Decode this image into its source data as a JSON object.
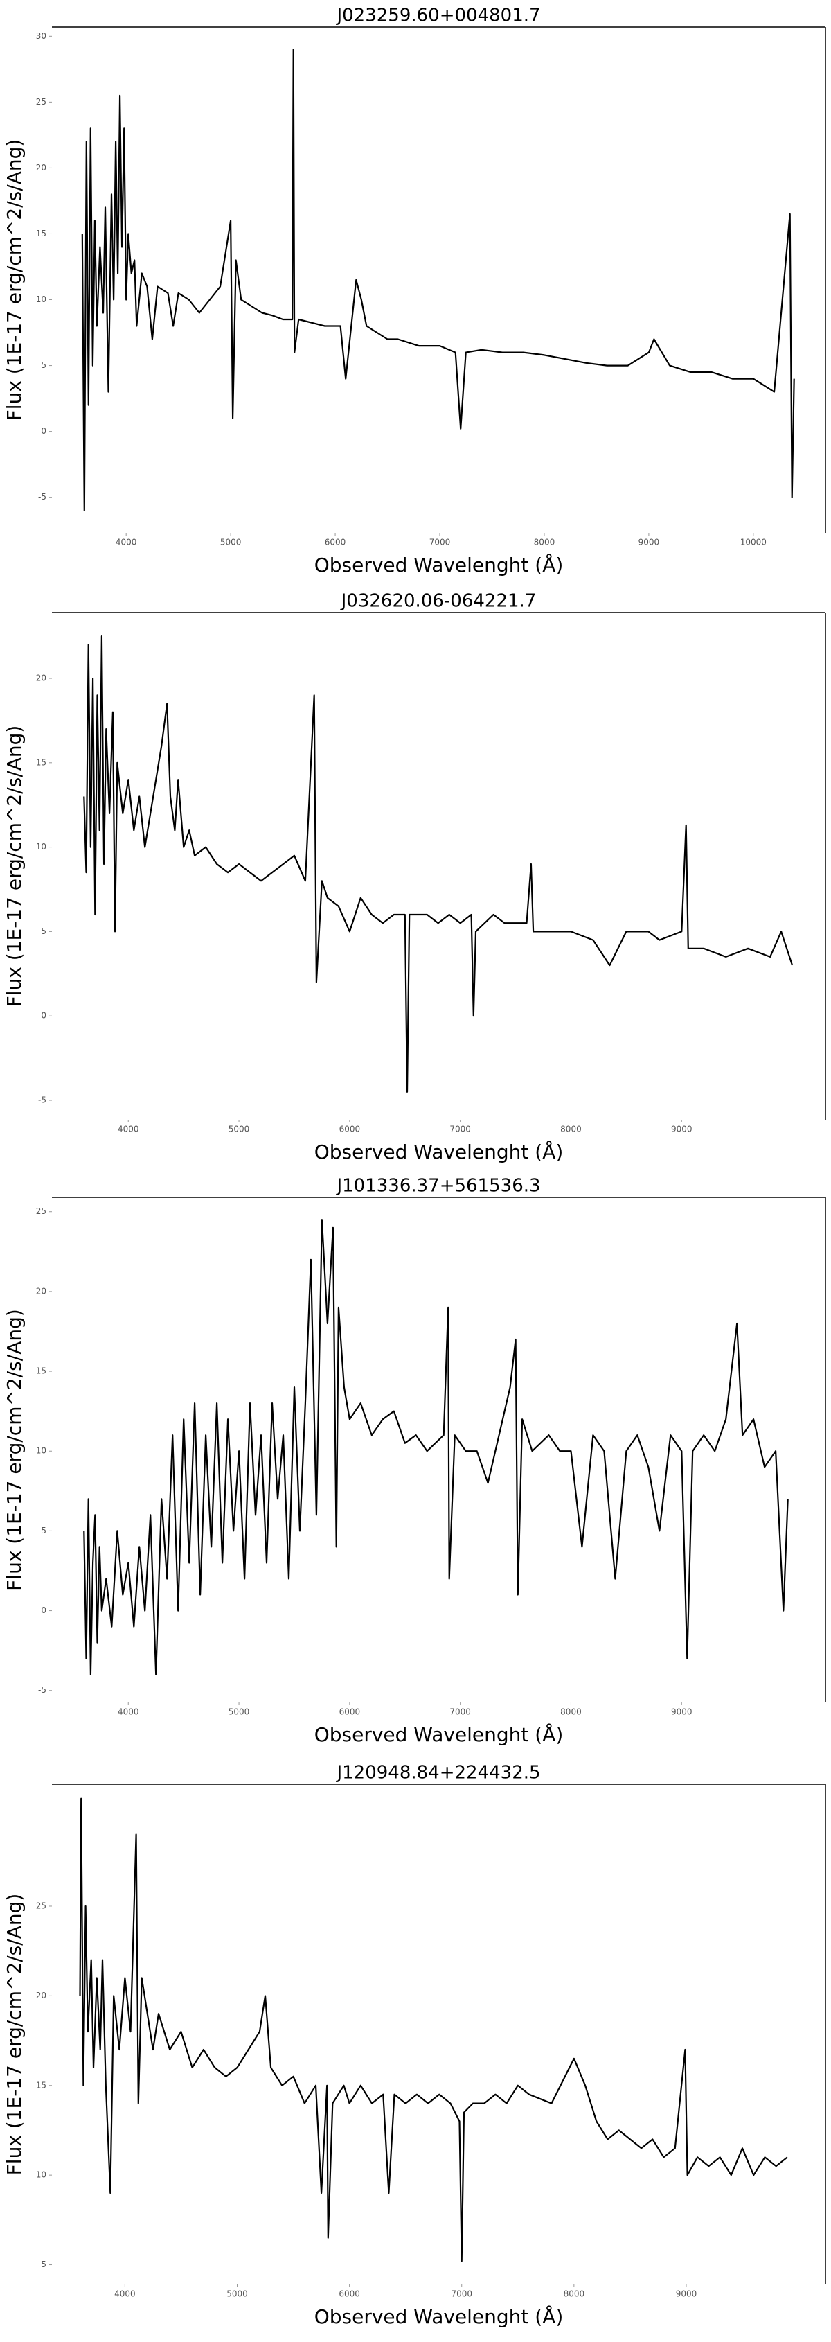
{
  "chart_data": [
    {
      "type": "line",
      "title": "J023259.60+004801.7",
      "xlabel": "Observed Wavelenght (Å)",
      "ylabel": "Flux (1E-17 erg/cm^2/s/Ang)",
      "color": "#000000",
      "xlim": [
        3290,
        10690
      ],
      "xticks": [
        4000,
        5000,
        6000,
        7000,
        8000,
        9000,
        10000
      ],
      "ylim": [
        -7.7,
        30.7
      ],
      "yticks": [
        -5,
        0,
        5,
        10,
        15,
        20,
        25,
        30
      ],
      "x": [
        3580,
        3600,
        3620,
        3640,
        3660,
        3680,
        3700,
        3720,
        3750,
        3780,
        3800,
        3830,
        3860,
        3880,
        3900,
        3920,
        3940,
        3960,
        3980,
        4000,
        4020,
        4050,
        4080,
        4100,
        4150,
        4200,
        4250,
        4300,
        4400,
        4450,
        4500,
        4600,
        4700,
        4800,
        4900,
        5000,
        5020,
        5050,
        5100,
        5200,
        5300,
        5400,
        5500,
        5590,
        5600,
        5610,
        5650,
        5800,
        5900,
        6050,
        6100,
        6200,
        6250,
        6300,
        6400,
        6500,
        6600,
        6800,
        7000,
        7150,
        7200,
        7250,
        7400,
        7600,
        7800,
        8000,
        8200,
        8400,
        8600,
        8800,
        9000,
        9050,
        9200,
        9400,
        9600,
        9800,
        10000,
        10200,
        10350,
        10370,
        10390
      ],
      "values": [
        15,
        -6,
        22,
        2,
        23,
        5,
        16,
        8,
        14,
        9,
        17,
        3,
        18,
        10,
        22,
        12,
        25.5,
        14,
        23,
        10,
        15,
        12,
        13,
        8,
        12,
        11,
        7,
        11,
        10.5,
        8,
        10.5,
        10,
        9,
        10,
        11,
        16,
        1,
        13,
        10,
        9.5,
        9,
        8.8,
        8.5,
        8.5,
        29,
        6,
        8.5,
        8.2,
        8,
        8,
        4,
        11.5,
        10,
        8,
        7.5,
        7,
        7,
        6.5,
        6.5,
        6,
        0.2,
        6,
        6.2,
        6,
        6,
        5.8,
        5.5,
        5.2,
        5,
        5,
        6,
        7,
        5,
        4.5,
        4.5,
        4,
        4,
        3,
        16.5,
        -5,
        4
      ]
    },
    {
      "type": "line",
      "title": "J032620.06-064221.7",
      "xlabel": "Observed Wavelenght (Å)",
      "ylabel": "Flux (1E-17 erg/cm^2/s/Ang)",
      "color": "#000000",
      "xlim": [
        3310,
        10300
      ],
      "xticks": [
        4000,
        5000,
        6000,
        7000,
        8000,
        9000
      ],
      "ylim": [
        -6.15,
        23.9
      ],
      "yticks": [
        -5,
        0,
        5,
        10,
        15,
        20
      ],
      "x": [
        3600,
        3620,
        3640,
        3660,
        3680,
        3700,
        3720,
        3740,
        3760,
        3780,
        3800,
        3830,
        3860,
        3880,
        3900,
        3950,
        4000,
        4050,
        4100,
        4150,
        4200,
        4250,
        4300,
        4350,
        4380,
        4420,
        4450,
        4500,
        4550,
        4600,
        4700,
        4800,
        4900,
        5000,
        5100,
        5200,
        5300,
        5400,
        5500,
        5600,
        5680,
        5700,
        5750,
        5800,
        5900,
        6000,
        6100,
        6200,
        6300,
        6400,
        6500,
        6520,
        6540,
        6700,
        6800,
        6900,
        7000,
        7100,
        7120,
        7140,
        7300,
        7400,
        7600,
        7640,
        7660,
        7800,
        8000,
        8200,
        8350,
        8500,
        8700,
        8800,
        9000,
        9040,
        9060,
        9200,
        9400,
        9600,
        9800,
        9900,
        10000
      ],
      "values": [
        13,
        8.5,
        22,
        10,
        20,
        6,
        19,
        11,
        22.5,
        9,
        17,
        12,
        18,
        5,
        15,
        12,
        14,
        11,
        13,
        10,
        12,
        14,
        16,
        18.5,
        13,
        11,
        14,
        10,
        11,
        9.5,
        10,
        9,
        8.5,
        9,
        8.5,
        8,
        8.5,
        9,
        9.5,
        8,
        19,
        2,
        8,
        7,
        6.5,
        5,
        7,
        6,
        5.5,
        6,
        6,
        -4.5,
        6,
        6,
        5.5,
        6,
        5.5,
        6,
        0,
        5,
        6,
        5.5,
        5.5,
        9,
        5,
        5,
        5,
        4.5,
        3,
        5,
        5,
        4.5,
        5,
        11.3,
        4,
        4,
        3.5,
        4,
        3.5,
        5,
        3
      ]
    },
    {
      "type": "line",
      "title": "J101336.37+561536.3",
      "xlabel": "Observed Wavelenght (Å)",
      "ylabel": "Flux (1E-17 erg/cm^2/s/Ang)",
      "color": "#000000",
      "xlim": [
        3310,
        10300
      ],
      "xticks": [
        4000,
        5000,
        6000,
        7000,
        8000,
        9000
      ],
      "ylim": [
        -5.75,
        25.9
      ],
      "yticks": [
        -5,
        0,
        5,
        10,
        15,
        20,
        25
      ],
      "x": [
        3600,
        3620,
        3640,
        3660,
        3680,
        3700,
        3720,
        3740,
        3760,
        3800,
        3850,
        3900,
        3950,
        4000,
        4050,
        4100,
        4150,
        4200,
        4250,
        4300,
        4350,
        4400,
        4450,
        4500,
        4550,
        4600,
        4650,
        4700,
        4750,
        4800,
        4850,
        4900,
        4950,
        5000,
        5050,
        5100,
        5150,
        5200,
        5250,
        5300,
        5350,
        5400,
        5450,
        5500,
        5550,
        5600,
        5650,
        5700,
        5750,
        5800,
        5850,
        5880,
        5900,
        5950,
        6000,
        6100,
        6200,
        6300,
        6400,
        6500,
        6600,
        6700,
        6850,
        6890,
        6900,
        6950,
        7050,
        7150,
        7250,
        7350,
        7450,
        7500,
        7520,
        7560,
        7650,
        7800,
        7900,
        8000,
        8100,
        8200,
        8300,
        8400,
        8500,
        8600,
        8700,
        8800,
        8900,
        9000,
        9050,
        9100,
        9200,
        9300,
        9400,
        9500,
        9550,
        9650,
        9750,
        9850,
        9920,
        9960
      ],
      "values": [
        5,
        -3,
        7,
        -4,
        3,
        6,
        -2,
        4,
        0,
        2,
        -1,
        5,
        1,
        3,
        -1,
        4,
        0,
        6,
        -4,
        7,
        2,
        11,
        0,
        12,
        3,
        13,
        1,
        11,
        4,
        13,
        3,
        12,
        5,
        10,
        2,
        13,
        6,
        11,
        3,
        13,
        7,
        11,
        2,
        14,
        5,
        13,
        22,
        6,
        24.5,
        18,
        24,
        4,
        19,
        14,
        12,
        13,
        11,
        12,
        12.5,
        10.5,
        11,
        10,
        11,
        19,
        2,
        11,
        10,
        10,
        8,
        11,
        14,
        17,
        1,
        12,
        10,
        11,
        10,
        10,
        4,
        11,
        10,
        2,
        10,
        11,
        9,
        5,
        11,
        10,
        -3,
        10,
        11,
        10,
        12,
        18,
        11,
        12,
        9,
        10,
        0,
        7
      ]
    },
    {
      "type": "line",
      "title": "J120948.84+224432.5",
      "xlabel": "Observed Wavelenght (Å)",
      "ylabel": "Flux (1E-17 erg/cm^2/s/Ang)",
      "color": "#000000",
      "xlim": [
        3350,
        10240
      ],
      "xticks": [
        4000,
        5000,
        6000,
        7000,
        8000,
        9000
      ],
      "ylim": [
        3.9,
        31.8
      ],
      "yticks": [
        5,
        10,
        15,
        20,
        25
      ],
      "x": [
        3600,
        3610,
        3630,
        3650,
        3670,
        3700,
        3720,
        3750,
        3780,
        3800,
        3830,
        3870,
        3900,
        3950,
        4000,
        4050,
        4100,
        4120,
        4150,
        4200,
        4250,
        4300,
        4400,
        4500,
        4600,
        4700,
        4800,
        4900,
        5000,
        5100,
        5200,
        5250,
        5300,
        5400,
        5500,
        5600,
        5700,
        5750,
        5800,
        5810,
        5850,
        5950,
        6000,
        6100,
        6200,
        6300,
        6350,
        6400,
        6500,
        6600,
        6700,
        6800,
        6900,
        6980,
        7000,
        7020,
        7100,
        7200,
        7300,
        7400,
        7500,
        7600,
        7800,
        8000,
        8100,
        8200,
        8300,
        8400,
        8500,
        8600,
        8700,
        8800,
        8900,
        8990,
        9010,
        9100,
        9200,
        9300,
        9400,
        9500,
        9600,
        9700,
        9800,
        9900
      ],
      "values": [
        20,
        31,
        15,
        25,
        18,
        22,
        16,
        21,
        17,
        22,
        15,
        9,
        20,
        17,
        21,
        18,
        29,
        14,
        21,
        19,
        17,
        19,
        17,
        18,
        16,
        17,
        16,
        15.5,
        16,
        17,
        18,
        20,
        16,
        15,
        15.5,
        14,
        15,
        9,
        15,
        6.5,
        14,
        15,
        14,
        15,
        14,
        14.5,
        9,
        14.5,
        14,
        14.5,
        14,
        14.5,
        14,
        13,
        5.2,
        13.5,
        14,
        14,
        14.5,
        14,
        15,
        14.5,
        14,
        16.5,
        15,
        13,
        12,
        12.5,
        12,
        11.5,
        12,
        11,
        11.5,
        17,
        10,
        11,
        10.5,
        11,
        10,
        11.5,
        10,
        11,
        10.5,
        11
      ]
    }
  ]
}
